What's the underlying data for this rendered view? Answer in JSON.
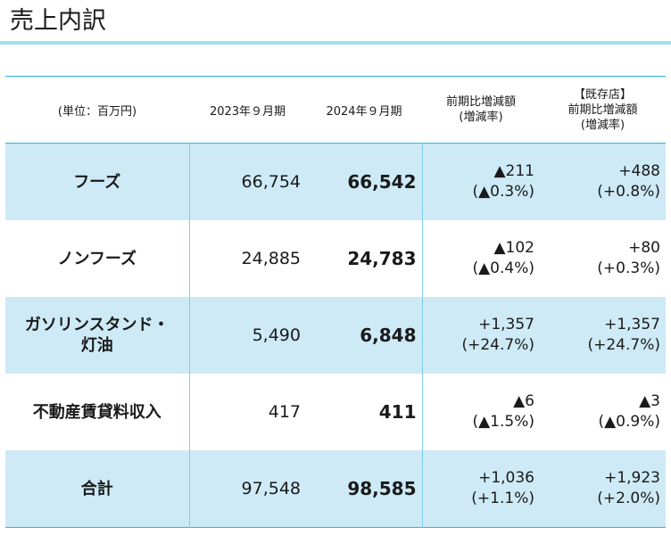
{
  "page": {
    "title": "売上内訳"
  },
  "table": {
    "headers": {
      "unit": "(単位：百万円)",
      "col2023": "2023年９月期",
      "col2024": "2024年９月期",
      "colChange": [
        "前期比増減額",
        "(増減率)"
      ],
      "colExisting": [
        "【既存店】",
        "前期比増減額",
        "(増減率)"
      ]
    },
    "rows": [
      {
        "label": [
          "フーズ"
        ],
        "v2023": "66,754",
        "v2024": "66,542",
        "change": [
          "▲211",
          "(▲0.3%)"
        ],
        "existing": [
          "+488",
          "(+0.8%)"
        ]
      },
      {
        "label": [
          "ノンフーズ"
        ],
        "v2023": "24,885",
        "v2024": "24,783",
        "change": [
          "▲102",
          "(▲0.4%)"
        ],
        "existing": [
          "+80",
          "(+0.3%)"
        ]
      },
      {
        "label": [
          "ガソリンスタンド・",
          "灯油"
        ],
        "v2023": "5,490",
        "v2024": "6,848",
        "change": [
          "+1,357",
          "(+24.7%)"
        ],
        "existing": [
          "+1,357",
          "(+24.7%)"
        ]
      },
      {
        "label": [
          "不動産賃貸料収入"
        ],
        "v2023": "417",
        "v2024": "411",
        "change": [
          "▲6",
          "(▲1.5%)"
        ],
        "existing": [
          "▲3",
          "(▲0.9%)"
        ]
      },
      {
        "label": [
          "合計"
        ],
        "v2023": "97,548",
        "v2024": "98,585",
        "change": [
          "+1,036",
          "(+1.1%)"
        ],
        "existing": [
          "+1,923",
          "(+2.0%)"
        ]
      }
    ]
  },
  "colors": {
    "accent": "#29b6d9",
    "rowShade": "#cdeaf6",
    "titleRule": "#9fdff2"
  }
}
